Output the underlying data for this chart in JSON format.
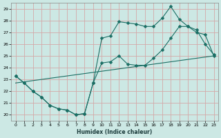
{
  "xlabel": "Humidex (Indice chaleur)",
  "bg_color": "#cce8e4",
  "grid_color": "#d4a8a8",
  "line_color": "#1a6e64",
  "xlim": [
    -0.5,
    23.5
  ],
  "ylim": [
    19.5,
    29.5
  ],
  "xticks": [
    0,
    1,
    2,
    3,
    4,
    5,
    6,
    7,
    8,
    9,
    10,
    11,
    12,
    13,
    14,
    15,
    16,
    17,
    18,
    19,
    20,
    21,
    22,
    23
  ],
  "yticks": [
    20,
    21,
    22,
    23,
    24,
    25,
    26,
    27,
    28,
    29
  ],
  "line1_x": [
    0,
    1,
    2,
    3,
    4,
    5,
    6,
    7,
    8,
    9,
    10,
    11,
    12,
    13,
    14,
    15,
    16,
    17,
    18,
    19,
    20,
    21,
    22,
    23
  ],
  "line1_y": [
    23.3,
    22.7,
    22.0,
    21.5,
    20.8,
    20.5,
    20.4,
    20.0,
    20.1,
    22.7,
    26.5,
    26.7,
    27.9,
    27.8,
    27.7,
    27.5,
    27.5,
    28.2,
    29.2,
    28.1,
    27.5,
    27.2,
    26.0,
    25.1
  ],
  "line2_x": [
    0,
    1,
    2,
    3,
    4,
    5,
    6,
    7,
    8,
    9,
    10,
    11,
    12,
    13,
    14,
    15,
    16,
    17,
    18,
    19,
    20,
    21,
    22,
    23
  ],
  "line2_y": [
    23.3,
    22.7,
    22.0,
    21.5,
    20.8,
    20.5,
    20.4,
    20.0,
    20.1,
    22.7,
    24.4,
    24.5,
    25.0,
    24.3,
    24.2,
    24.2,
    24.8,
    25.5,
    26.5,
    27.5,
    27.5,
    27.0,
    26.8,
    25.0
  ],
  "line3_x": [
    0,
    23
  ],
  "line3_y": [
    22.7,
    25.0
  ]
}
